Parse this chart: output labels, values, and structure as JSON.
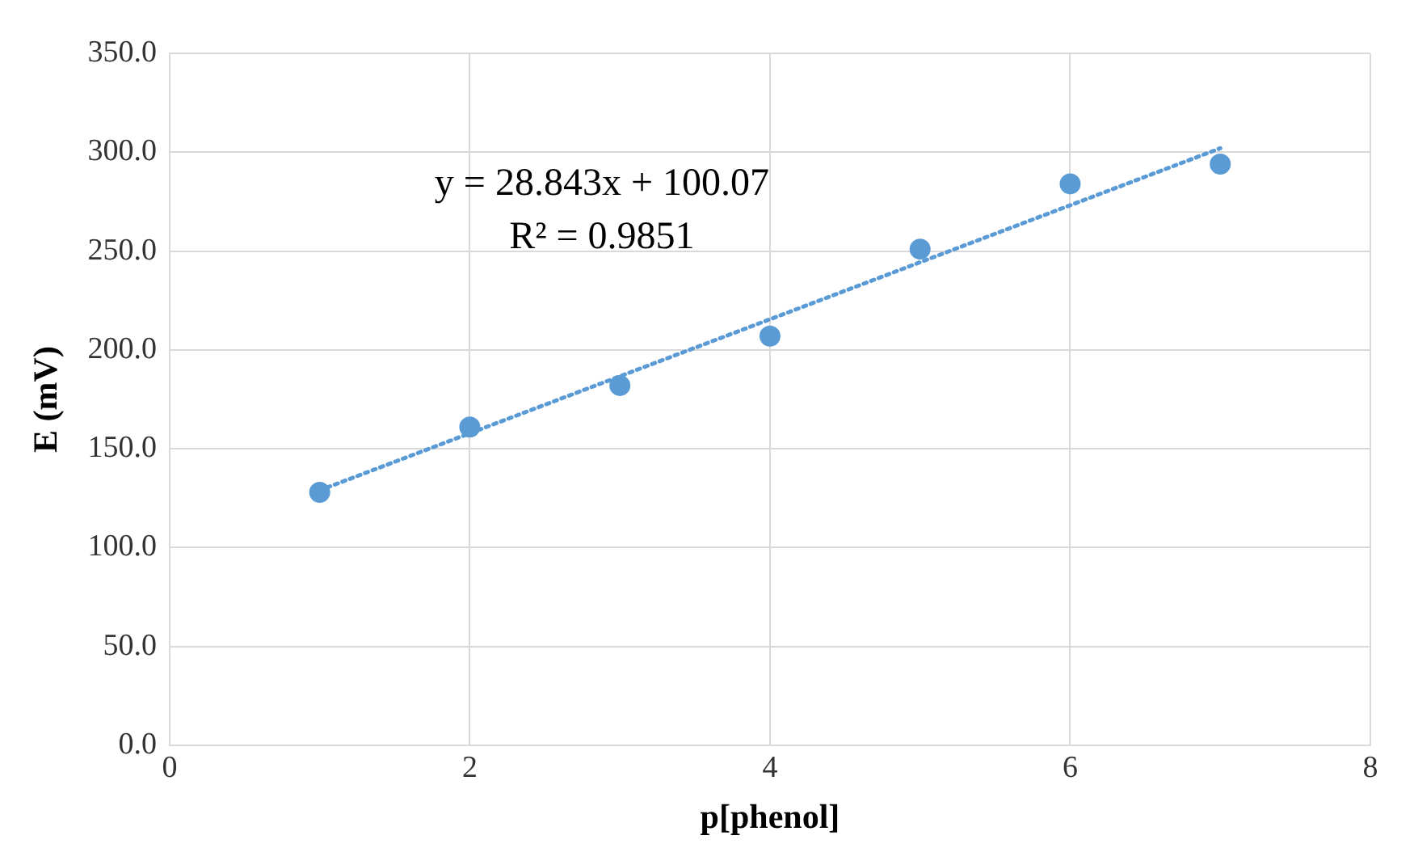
{
  "chart_data": {
    "type": "scatter",
    "xlabel": "p[phenol]",
    "ylabel": "E (mV)",
    "series": [
      {
        "type": "scatter",
        "color": "#5b9bd5",
        "marker": "circle",
        "x": [
          1,
          2,
          3,
          4,
          5,
          6,
          7
        ],
        "values": [
          128,
          161,
          182,
          207,
          251,
          284,
          294
        ]
      },
      {
        "type": "line",
        "color": "#5b9bd5",
        "marker": "none",
        "line_style": "dotted",
        "x": [
          1,
          7
        ],
        "values": [
          129,
          302
        ]
      }
    ],
    "xlim": [
      0,
      8
    ],
    "xticks": [
      0,
      2,
      4,
      6,
      8
    ],
    "ylim": [
      0,
      350
    ],
    "yticks": [
      {
        "value": 0,
        "label": "0.0"
      },
      {
        "value": 50,
        "label": "50.0"
      },
      {
        "value": 100,
        "label": "100.0"
      },
      {
        "value": 150,
        "label": "150.0"
      },
      {
        "value": 200,
        "label": "200.0"
      },
      {
        "value": 250,
        "label": "250.0"
      },
      {
        "value": 300,
        "label": "300.0"
      },
      {
        "value": 350,
        "label": "350.0"
      }
    ],
    "grid": true,
    "legend": false,
    "annotations": [
      "y = 28.843x + 100.07",
      "R² = 0.9851"
    ]
  }
}
